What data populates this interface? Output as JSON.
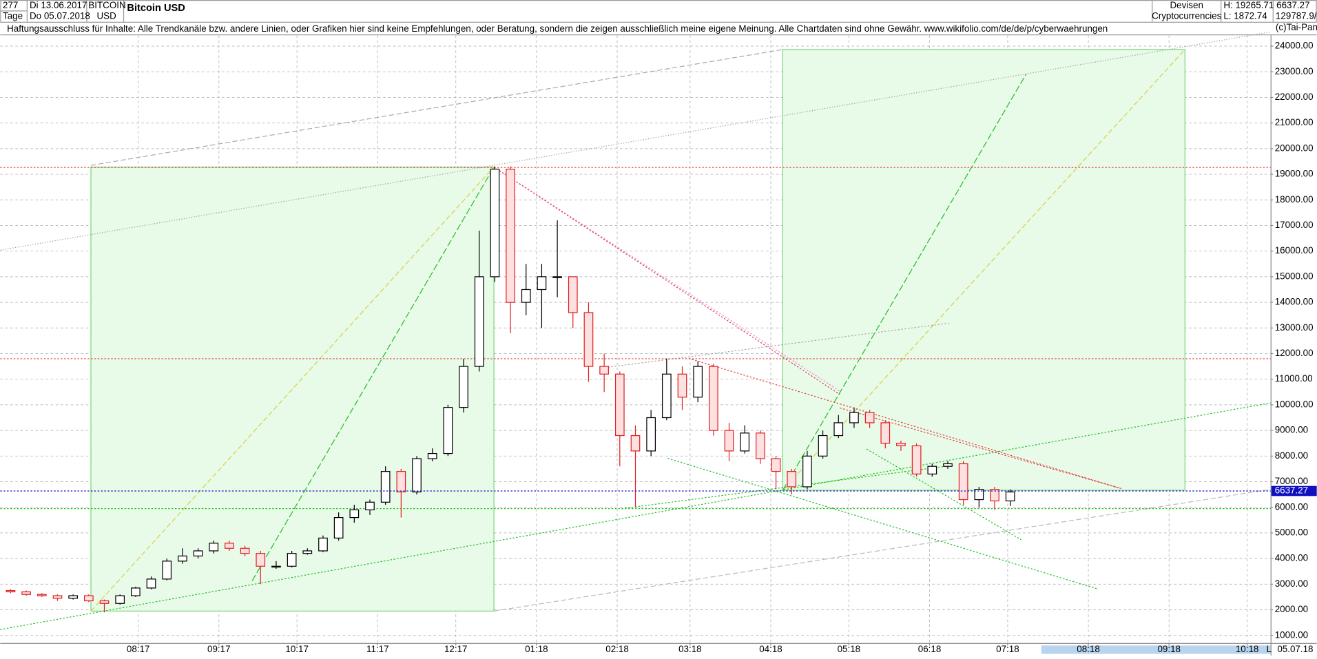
{
  "header": {
    "count": "277",
    "date_from": "Di 13.06.2017",
    "period": "Tage",
    "date_to": "Do 05.07.2018",
    "symbol": "BITCOIN",
    "currency": "USD",
    "instrument": "Bitcoin USD",
    "group": "Devisen",
    "subgroup": "Cryptocurrencies",
    "high": "H: 19265.71",
    "low": "L: 1872.74",
    "last": "6637.27",
    "volume": "129787.9/"
  },
  "disclaimer": "Haftungsausschluss für Inhalte: Alle Trendkanäle bzw. andere Linien, oder Grafiken hier sind keine Empfehlungen, oder Beratung, sondern die zeigen ausschließlich meine eigene Meinung. Alle Chartdaten sind ohne Gewähr.  www.wikifolio.com/de/de/p/cyberwaehrungen",
  "copyright": "(c)Tai-Pan",
  "footer": {
    "date": "05.07.18",
    "mode": "L"
  },
  "chart_data": {
    "type": "candlestick",
    "title": "Bitcoin USD",
    "x": [
      0,
      6,
      12,
      18,
      24,
      30,
      36,
      42,
      48,
      54,
      60,
      66,
      72,
      78,
      84,
      90,
      96,
      102,
      108,
      114,
      120,
      126,
      132,
      138,
      144,
      150,
      156,
      162,
      168,
      174,
      180,
      186,
      192,
      198,
      204,
      210,
      216,
      222,
      228,
      234,
      240,
      246,
      252,
      258,
      264,
      270,
      276,
      282,
      288,
      294,
      300,
      306,
      312,
      318,
      324,
      330,
      336,
      342,
      348,
      354,
      360,
      366,
      372,
      378,
      384
    ],
    "open": [
      2750,
      2700,
      2600,
      2550,
      2450,
      2550,
      2350,
      2250,
      2550,
      2850,
      3200,
      3900,
      4100,
      4300,
      4600,
      4400,
      4200,
      3700,
      3700,
      4200,
      4300,
      4800,
      5600,
      5900,
      6200,
      7400,
      6600,
      7900,
      8100,
      9900,
      11500,
      15000,
      19200,
      14000,
      14500,
      15000,
      15000,
      13600,
      11500,
      11200,
      8800,
      8200,
      9500,
      11200,
      10300,
      11500,
      9000,
      8200,
      8900,
      7900,
      7400,
      6800,
      8000,
      8800,
      9300,
      9700,
      9300,
      8500,
      8400,
      7300,
      7600,
      7700,
      6300,
      6700,
      6250
    ],
    "high": [
      2800,
      2750,
      2650,
      2600,
      2600,
      2600,
      2400,
      2600,
      2900,
      3300,
      4000,
      4400,
      4400,
      4700,
      4700,
      4500,
      4300,
      3900,
      4300,
      4400,
      4900,
      5800,
      6100,
      6300,
      7600,
      7500,
      8000,
      8300,
      10000,
      11800,
      16800,
      19300,
      19300,
      15500,
      15500,
      17200,
      15000,
      14000,
      12000,
      11300,
      9200,
      9800,
      11800,
      11500,
      11700,
      11600,
      9300,
      9200,
      9000,
      8000,
      7500,
      8200,
      9000,
      9600,
      9900,
      9800,
      9400,
      8600,
      8500,
      7700,
      7800,
      7800,
      6800,
      6800,
      6700
    ],
    "low": [
      2650,
      2550,
      2500,
      2350,
      2400,
      2300,
      1900,
      2200,
      2500,
      2800,
      3150,
      3800,
      4000,
      4200,
      4300,
      4100,
      3000,
      3600,
      3650,
      4150,
      4250,
      4700,
      5400,
      5700,
      6100,
      5600,
      6500,
      7800,
      8000,
      9700,
      11300,
      14800,
      12800,
      13500,
      13000,
      14200,
      13000,
      10900,
      10500,
      7600,
      6000,
      8000,
      9400,
      9800,
      10100,
      8800,
      7800,
      8100,
      7700,
      6700,
      6500,
      6700,
      7900,
      8700,
      9100,
      9100,
      8300,
      8200,
      7200,
      7200,
      7500,
      6100,
      6000,
      5900,
      6050
    ],
    "close": [
      2700,
      2600,
      2550,
      2450,
      2550,
      2350,
      2250,
      2550,
      2850,
      3200,
      3900,
      4100,
      4300,
      4600,
      4400,
      4200,
      3700,
      3700,
      4200,
      4300,
      4800,
      5600,
      5900,
      6200,
      7400,
      6600,
      7900,
      8100,
      9900,
      11500,
      15000,
      19200,
      14000,
      14500,
      15000,
      15000,
      13600,
      11500,
      11200,
      8800,
      8200,
      9500,
      11200,
      10300,
      11500,
      9000,
      8200,
      8900,
      7900,
      7400,
      6800,
      8000,
      8800,
      9300,
      9700,
      9300,
      8500,
      8400,
      7300,
      7600,
      7700,
      6300,
      6700,
      6250,
      6600
    ],
    "up_color": "#000000",
    "down_color": "#e02020",
    "xlim": [
      -4,
      484
    ],
    "xticks": [
      {
        "value": 49,
        "label": "08:17"
      },
      {
        "value": 80,
        "label": "09:17"
      },
      {
        "value": 110,
        "label": "10:17"
      },
      {
        "value": 141,
        "label": "11:17"
      },
      {
        "value": 171,
        "label": "12:17"
      },
      {
        "value": 202,
        "label": "01:18"
      },
      {
        "value": 233,
        "label": "02:18"
      },
      {
        "value": 261,
        "label": "03:18"
      },
      {
        "value": 292,
        "label": "04:18"
      },
      {
        "value": 322,
        "label": "05:18"
      },
      {
        "value": 353,
        "label": "06:18"
      },
      {
        "value": 383,
        "label": "07:18"
      },
      {
        "value": 414,
        "label": "08:18"
      },
      {
        "value": 445,
        "label": "09:18"
      },
      {
        "value": 475,
        "label": "10:18"
      }
    ],
    "ylim": [
      705,
      24426
    ],
    "yticks": [
      {
        "value": 1000,
        "label": "1000.00"
      },
      {
        "value": 2000,
        "label": "2000.00"
      },
      {
        "value": 3000,
        "label": "3000.00"
      },
      {
        "value": 4000,
        "label": "4000.00"
      },
      {
        "value": 5000,
        "label": "5000.00"
      },
      {
        "value": 6000,
        "label": "6000.00"
      },
      {
        "value": 7000,
        "label": "7000.00"
      },
      {
        "value": 8000,
        "label": "8000.00"
      },
      {
        "value": 9000,
        "label": "9000.00"
      },
      {
        "value": 10000,
        "label": "10000.00"
      },
      {
        "value": 11000,
        "label": "11000.00"
      },
      {
        "value": 12000,
        "label": "12000.00"
      },
      {
        "value": 13000,
        "label": "13000.00"
      },
      {
        "value": 14000,
        "label": "14000.00"
      },
      {
        "value": 15000,
        "label": "15000.00"
      },
      {
        "value": 16000,
        "label": "16000.00"
      },
      {
        "value": 17000,
        "label": "17000.00"
      },
      {
        "value": 18000,
        "label": "18000.00"
      },
      {
        "value": 19000,
        "label": "19000.00"
      },
      {
        "value": 20000,
        "label": "20000.00"
      },
      {
        "value": 21000,
        "label": "21000.00"
      },
      {
        "value": 22000,
        "label": "22000.00"
      },
      {
        "value": 23000,
        "label": "23000.00"
      },
      {
        "value": 24000,
        "label": "24000.00"
      }
    ],
    "grid": true,
    "last_price": 6637.27,
    "last_price_color": "#1010c0",
    "hlines": [
      {
        "value": 19265.71,
        "color": "#e04040"
      },
      {
        "value": 11800,
        "color": "#e04040"
      },
      {
        "value": 5950,
        "color": "#20c020"
      }
    ]
  }
}
